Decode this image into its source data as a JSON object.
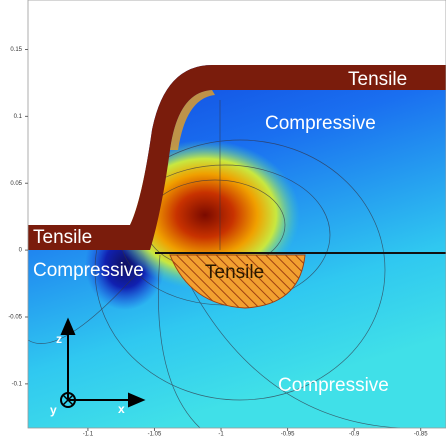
{
  "chart_data": {
    "type": "contour",
    "xlim": [
      -1.145,
      -0.831
    ],
    "ylim": [
      -0.133,
      0.187
    ],
    "xticks": [
      -1.1,
      -1.05,
      -1,
      -0.95,
      -0.9,
      -0.85
    ],
    "yticks": [
      0.15,
      0.1,
      0.05,
      0,
      -0.05,
      -0.1
    ],
    "annotations": [
      "Tensile",
      "Compressive",
      "Tensile",
      "Compressive",
      "Tensile",
      "Compressive"
    ],
    "axis_labels": [
      "z",
      "y",
      "x"
    ]
  }
}
